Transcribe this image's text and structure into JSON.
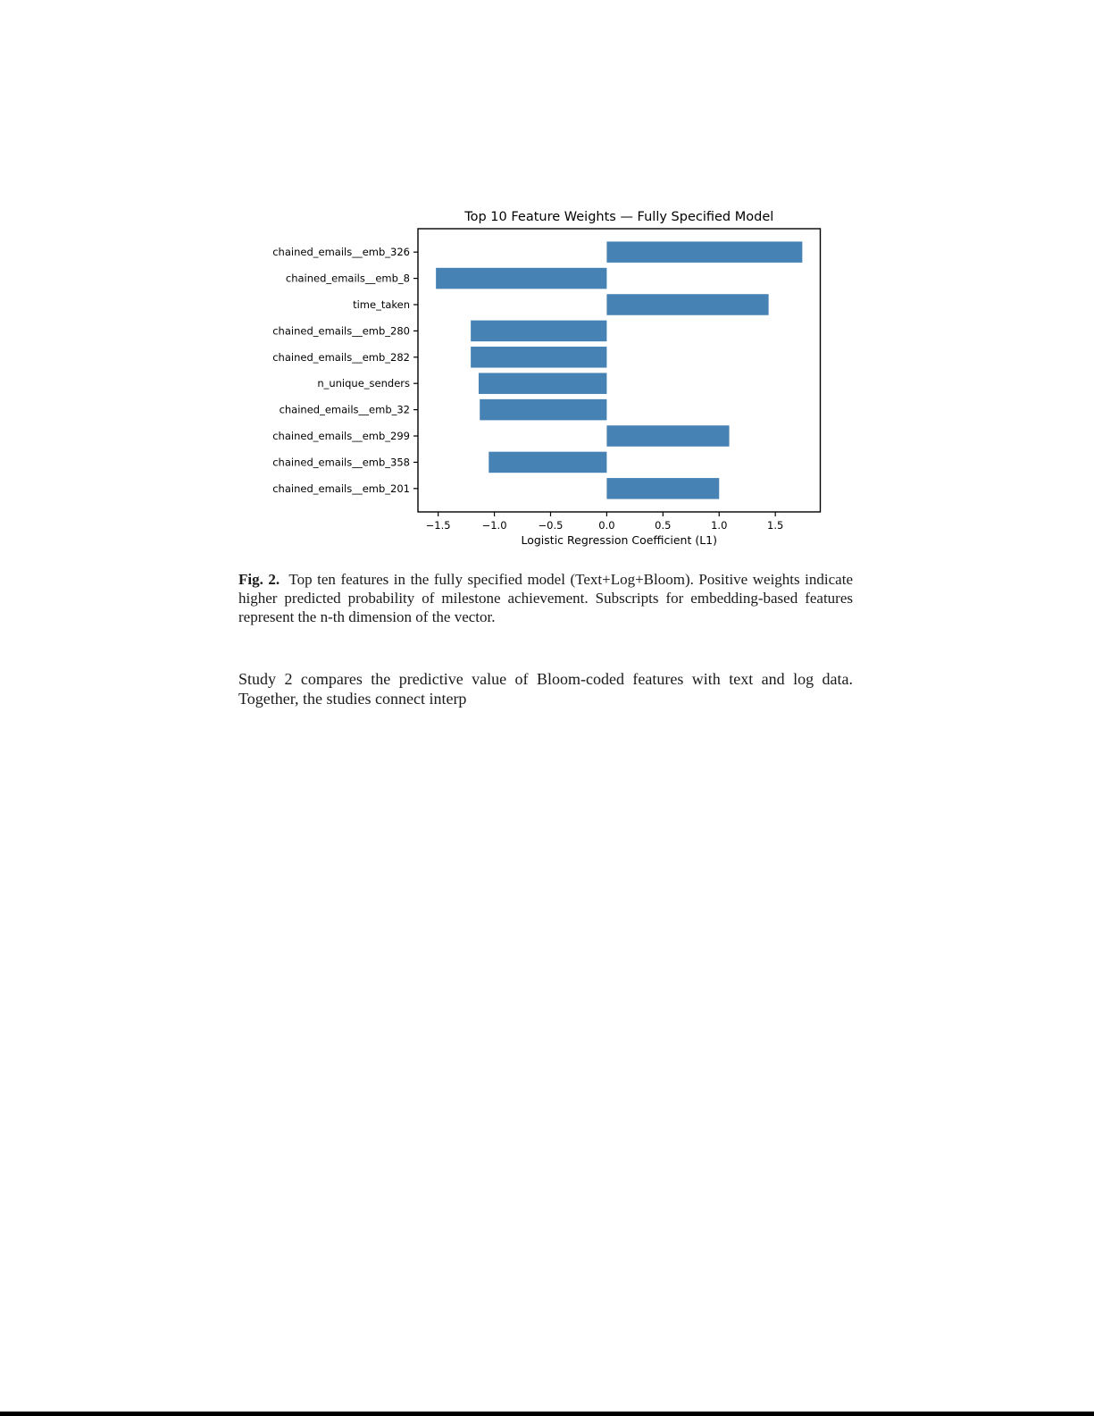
{
  "page": {
    "caption": {
      "label": "Fig. 2.",
      "text": "Top ten features in the fully specified model (Text+Log+Bloom). Positive weights indicate higher predicted probability of milestone achievement. Subscripts for embedding-based features represent the n-th dimension of the vector."
    },
    "paragraph": "Study 2 compares the predictive value of Bloom-coded features with text and log data. Together, the studies connect interp"
  },
  "chart_data": {
    "type": "bar",
    "orientation": "horizontal",
    "title": "Top 10 Feature Weights — Fully Specified Model",
    "xlabel": "Logistic Regression Coefficient (L1)",
    "ylabel": "",
    "categories": [
      "chained_emails__emb_326",
      "chained_emails__emb_8",
      "time_taken",
      "chained_emails__emb_280",
      "chained_emails__emb_282",
      "n_unique_senders",
      "chained_emails__emb_32",
      "chained_emails__emb_299",
      "chained_emails__emb_358",
      "chained_emails__emb_201"
    ],
    "values": [
      1.74,
      -1.52,
      1.44,
      -1.21,
      -1.21,
      -1.14,
      -1.13,
      1.09,
      -1.05,
      1.0
    ],
    "xlim": [
      -1.68,
      1.9
    ],
    "xticks": [
      -1.5,
      -1.0,
      -0.5,
      0.0,
      0.5,
      1.0,
      1.5
    ],
    "bar_color": "#4682b4",
    "axis_color": "#000000",
    "grid": false,
    "legend_position": "none"
  }
}
